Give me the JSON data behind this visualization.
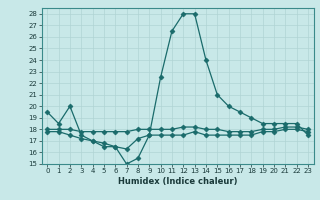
{
  "title": "",
  "xlabel": "Humidex (Indice chaleur)",
  "bg_color": "#c8e8e8",
  "line_color": "#1a6b6b",
  "grid_color": "#b0d4d4",
  "ylim": [
    15,
    28.5
  ],
  "xlim": [
    -0.5,
    23.5
  ],
  "yticks": [
    15,
    16,
    17,
    18,
    19,
    20,
    21,
    22,
    23,
    24,
    25,
    26,
    27,
    28
  ],
  "xticks": [
    0,
    1,
    2,
    3,
    4,
    5,
    6,
    7,
    8,
    9,
    10,
    11,
    12,
    13,
    14,
    15,
    16,
    17,
    18,
    19,
    20,
    21,
    22,
    23
  ],
  "line1_x": [
    0,
    1,
    2,
    3,
    4,
    5,
    6,
    7,
    8,
    9,
    10,
    11,
    12,
    13,
    14,
    15,
    16,
    17,
    18,
    19,
    20,
    21,
    22,
    23
  ],
  "line1_y": [
    19.5,
    18.5,
    20.0,
    17.5,
    17.0,
    16.5,
    16.5,
    15.0,
    15.5,
    17.5,
    22.5,
    26.5,
    28.0,
    28.0,
    24.0,
    21.0,
    20.0,
    19.5,
    19.0,
    18.5,
    18.5,
    18.5,
    18.5,
    17.5
  ],
  "line2_x": [
    0,
    1,
    2,
    3,
    4,
    5,
    6,
    7,
    8,
    9,
    10,
    11,
    12,
    13,
    14,
    15,
    16,
    17,
    18,
    19,
    20,
    21,
    22,
    23
  ],
  "line2_y": [
    18.0,
    18.0,
    18.0,
    17.8,
    17.8,
    17.8,
    17.8,
    17.8,
    18.0,
    18.0,
    18.0,
    18.0,
    18.2,
    18.2,
    18.0,
    18.0,
    17.8,
    17.8,
    17.8,
    18.0,
    18.0,
    18.2,
    18.2,
    18.0
  ],
  "line3_x": [
    0,
    1,
    2,
    3,
    4,
    5,
    6,
    7,
    8,
    9,
    10,
    11,
    12,
    13,
    14,
    15,
    16,
    17,
    18,
    19,
    20,
    21,
    22,
    23
  ],
  "line3_y": [
    17.8,
    17.8,
    17.5,
    17.2,
    17.0,
    16.8,
    16.5,
    16.3,
    17.2,
    17.5,
    17.5,
    17.5,
    17.5,
    17.8,
    17.5,
    17.5,
    17.5,
    17.5,
    17.5,
    17.8,
    17.8,
    18.0,
    18.0,
    17.8
  ]
}
